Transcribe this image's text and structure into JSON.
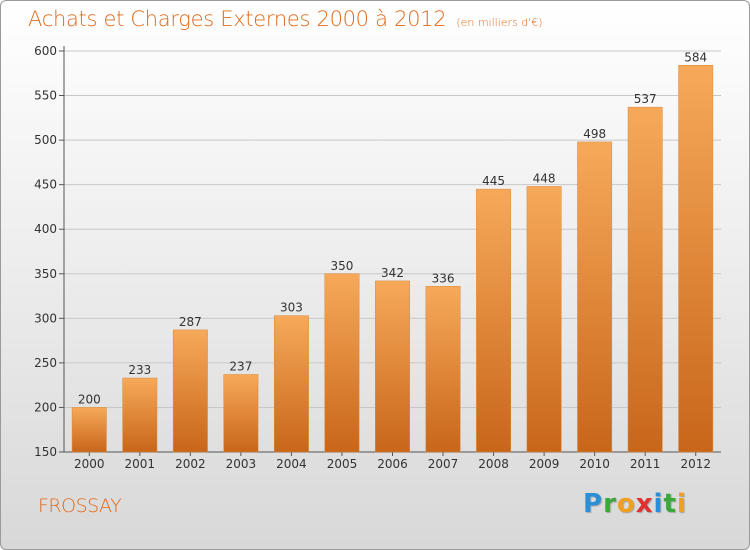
{
  "title": "Achats et Charges Externes 2000 à 2012",
  "subtitle": "(en milliers d'€)",
  "commune": "FROSSAY",
  "logo": {
    "letters": [
      {
        "char": "P",
        "color": "#2a8fd6"
      },
      {
        "char": "r",
        "color": "#3aa83a"
      },
      {
        "char": "o",
        "color": "#f0a020"
      },
      {
        "char": "x",
        "color": "#e03030"
      },
      {
        "char": "i",
        "color": "#2a8fd6"
      },
      {
        "char": "t",
        "color": "#3aa83a"
      },
      {
        "char": "i",
        "color": "#f0a020"
      }
    ]
  },
  "colors": {
    "bar_light": "#f7a95a",
    "bar_dark": "#c8661a",
    "title": "#e06a1a",
    "grid": "#c8c8c8"
  },
  "chart_data": {
    "type": "bar",
    "title": "Achats et Charges Externes 2000 à 2012",
    "subtitle": "(en milliers d'€)",
    "categories": [
      "2000",
      "2001",
      "2002",
      "2003",
      "2004",
      "2005",
      "2006",
      "2007",
      "2008",
      "2009",
      "2010",
      "2011",
      "2012"
    ],
    "values": [
      200,
      233,
      287,
      237,
      303,
      350,
      342,
      336,
      445,
      448,
      498,
      537,
      584
    ],
    "ylim": [
      150,
      600
    ],
    "yticks": [
      150,
      200,
      250,
      300,
      350,
      400,
      450,
      500,
      550,
      600
    ],
    "xlabel": "",
    "ylabel": "",
    "grid": true,
    "legend": "none"
  }
}
